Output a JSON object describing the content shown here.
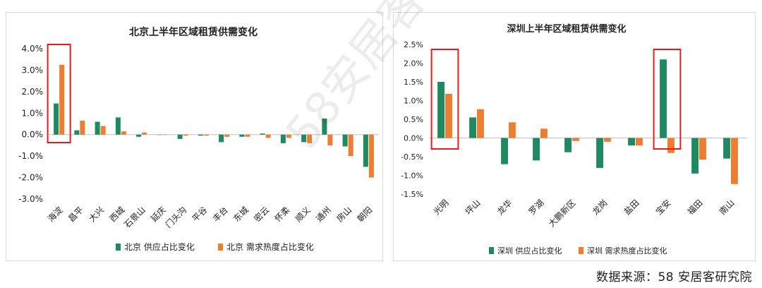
{
  "chart_data": [
    {
      "type": "bar",
      "title": "北京上半年区域租赁供需变化",
      "categories": [
        "海淀",
        "昌平",
        "大兴",
        "西城",
        "石景山",
        "延庆",
        "门头沟",
        "平谷",
        "丰台",
        "东城",
        "密云",
        "怀柔",
        "顺义",
        "通州",
        "房山",
        "朝阳"
      ],
      "series": [
        {
          "name": "北京 供应占比变化",
          "values": [
            1.45,
            0.2,
            0.6,
            0.8,
            -0.1,
            0.0,
            -0.2,
            -0.05,
            -0.35,
            -0.1,
            0.05,
            -0.4,
            -0.35,
            0.75,
            -0.55,
            -1.5
          ]
        },
        {
          "name": "北京 需求热度占比变化",
          "values": [
            3.25,
            0.65,
            0.4,
            0.15,
            0.1,
            0.0,
            -0.05,
            -0.05,
            -0.1,
            -0.1,
            -0.15,
            -0.15,
            -0.4,
            -0.5,
            -1.0,
            -2.0
          ]
        }
      ],
      "ylim": [
        -3.0,
        4.0
      ],
      "yticks": [
        "4.0%",
        "3.0%",
        "2.0%",
        "1.0%",
        "0.0%",
        "-1.0%",
        "-2.0%",
        "-3.0%"
      ],
      "highlight_indices": [
        0
      ],
      "legend_placement": "bottom"
    },
    {
      "type": "bar",
      "title": "深圳上半年区域租赁供需变化",
      "categories": [
        "光明",
        "坪山",
        "龙华",
        "罗湖",
        "大鹏新区",
        "龙岗",
        "盐田",
        "宝安",
        "福田",
        "南山"
      ],
      "series": [
        {
          "name": "深圳 供应占比变化",
          "values": [
            1.5,
            0.55,
            -0.7,
            -0.6,
            -0.38,
            -0.8,
            -0.2,
            2.1,
            -0.95,
            -0.55
          ]
        },
        {
          "name": "深圳 需求热度占比变化",
          "values": [
            1.18,
            0.77,
            0.42,
            0.25,
            -0.08,
            -0.1,
            -0.2,
            -0.4,
            -0.58,
            -1.23
          ]
        }
      ],
      "ylim": [
        -1.5,
        2.5
      ],
      "yticks": [
        "2.5%",
        "2.0%",
        "1.5%",
        "1.0%",
        "0.5%",
        "0.0%",
        "-0.5%",
        "-1.0%",
        "-1.5%"
      ],
      "highlight_indices": [
        0,
        7
      ],
      "legend_placement": "bottom"
    }
  ],
  "colors": {
    "supply": "#1f8a5f",
    "demand": "#ed7d31",
    "highlight": "#e8191f"
  },
  "source_text": "数据来源：58 安居客研究院",
  "watermark_text": "58安居客研究院"
}
